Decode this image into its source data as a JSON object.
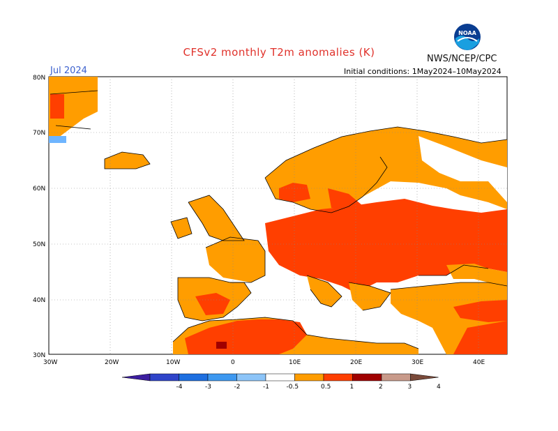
{
  "header": {
    "title": "CFSv2 monthly T2m anomalies (K)",
    "agency": "NWS/NCEP/CPC",
    "logo_text": "NOAA",
    "month": "Jul 2024",
    "initial_conditions": "Initial conditions: 1May2024–10May2024"
  },
  "colors": {
    "title": "#e0312a",
    "month": "#3a5fcd",
    "ocean": "#ffffff",
    "land_neutral": "#ffffff",
    "anom_0_5_to_1": "#ff9d00",
    "anom_1_to_2": "#ff3f00",
    "anom_2_to_3": "#a00000",
    "anom_neg_0_5_to_1": "#6eb5ff",
    "anom_neg_1_to_2": "#1e6fe0",
    "coast": "#000000"
  },
  "axes": {
    "lat_labels": [
      "80N",
      "70N",
      "60N",
      "50N",
      "40N",
      "30N"
    ],
    "lon_labels": [
      "30W",
      "20W",
      "10W",
      "0",
      "10E",
      "20E",
      "30E",
      "40E"
    ]
  },
  "colorbar": {
    "labels": [
      "-4",
      "-3",
      "-2",
      "-1",
      "-0.5",
      "0.5",
      "1",
      "2",
      "3",
      "4"
    ],
    "colors": [
      "#3c1ea0",
      "#2f44c9",
      "#1e6fe0",
      "#3d98f0",
      "#8cc4f8",
      "#ffffff",
      "#ff9d00",
      "#ff3f00",
      "#a00000",
      "#c89a8a",
      "#7a4a3a"
    ]
  }
}
